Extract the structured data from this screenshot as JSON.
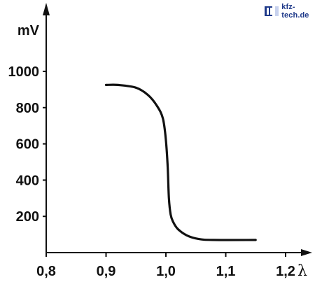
{
  "watermark": {
    "text": "kfz-tech.de",
    "color": "#1f3a8a"
  },
  "chart_data": {
    "type": "line",
    "title": "",
    "ylabel": "mV",
    "xlabel": "λ",
    "xlim": [
      0.8,
      1.2
    ],
    "ylim": [
      0,
      1000
    ],
    "x_ticks": [
      0.8,
      0.9,
      1.0,
      1.1,
      1.2
    ],
    "x_tick_labels": [
      "0,8",
      "0,9",
      "1,0",
      "1,1",
      "1,2"
    ],
    "y_ticks": [
      200,
      400,
      600,
      800,
      1000
    ],
    "y_tick_labels": [
      "200",
      "400",
      "600",
      "800",
      "1000"
    ],
    "grid": false,
    "series": [
      {
        "color": "#111111",
        "x": [
          0.9,
          0.92,
          0.95,
          0.97,
          0.985,
          0.995,
          1.0,
          1.003,
          1.005,
          1.008,
          1.012,
          1.02,
          1.035,
          1.055,
          1.08,
          1.15
        ],
        "y": [
          925,
          925,
          910,
          870,
          810,
          740,
          620,
          470,
          300,
          210,
          170,
          130,
          95,
          75,
          70,
          70
        ]
      }
    ]
  }
}
